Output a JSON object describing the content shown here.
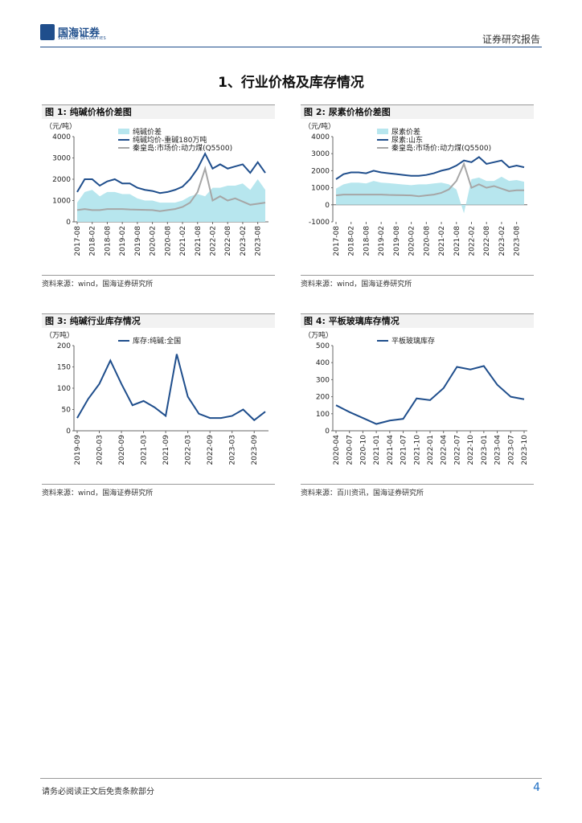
{
  "header": {
    "logo_cn": "国海证券",
    "logo_en": "SEALAND SECURITIES",
    "report_type": "证券研究报告"
  },
  "section_title": "1、行业价格及库存情况",
  "figures": [
    {
      "label": "图 1:",
      "title": "纯碱价格价差图",
      "source": "资料来源：wind，国海证券研究所"
    },
    {
      "label": "图 2:",
      "title": "尿素价格价差图",
      "source": "资料来源：wind，国海证券研究所"
    },
    {
      "label": "图 3:",
      "title": "纯碱行业库存情况",
      "source": "资料来源：wind，国海证券研究所"
    },
    {
      "label": "图 4:",
      "title": "平板玻璃库存情况",
      "source": "资料来源：百川资讯，国海证券研究所"
    }
  ],
  "chart_data": [
    {
      "type": "line",
      "unit": "（元/吨）",
      "categories": [
        "2017-08",
        null,
        "2018-02",
        null,
        "2018-08",
        null,
        "2019-02",
        null,
        "2019-08",
        null,
        "2020-02",
        null,
        "2020-08",
        null,
        "2021-02",
        null,
        "2021-08",
        null,
        "2022-02",
        null,
        "2022-08",
        null,
        "2023-02",
        null,
        "2023-08",
        null
      ],
      "series": [
        {
          "name": "纯碱价差",
          "kind": "area",
          "color": "#b7e6ee",
          "values": [
            900,
            1400,
            1500,
            1200,
            1400,
            1400,
            1300,
            1300,
            1100,
            1000,
            1000,
            900,
            900,
            900,
            1000,
            1200,
            1300,
            1200,
            1600,
            1600,
            1700,
            1700,
            1800,
            1500,
            2000,
            1500
          ]
        },
        {
          "name": "纯碱均价-重碱180万吨",
          "kind": "line",
          "color": "#1f4e8c",
          "values": [
            1400,
            2000,
            2000,
            1700,
            1900,
            2000,
            1800,
            1800,
            1600,
            1500,
            1450,
            1350,
            1400,
            1500,
            1650,
            2000,
            2500,
            3200,
            2500,
            2700,
            2500,
            2600,
            2700,
            2300,
            2800,
            2300
          ]
        },
        {
          "name": "秦皇岛:市场价:动力煤(Q5500)",
          "kind": "line",
          "color": "#a6a6a6",
          "values": [
            550,
            600,
            550,
            550,
            600,
            600,
            600,
            580,
            570,
            560,
            550,
            500,
            550,
            600,
            700,
            900,
            1400,
            2500,
            1000,
            1200,
            1000,
            1100,
            950,
            800,
            850,
            900
          ]
        }
      ],
      "ylim": [
        0,
        4000
      ],
      "yticks": [
        0,
        1000,
        2000,
        3000,
        4000
      ]
    },
    {
      "type": "line",
      "unit": "（元/吨）",
      "categories": [
        "2017-08",
        null,
        "2018-02",
        null,
        "2018-08",
        null,
        "2019-02",
        null,
        "2019-08",
        null,
        "2020-02",
        null,
        "2020-08",
        null,
        "2021-02",
        null,
        "2021-08",
        null,
        "2022-02",
        null,
        "2022-08",
        null,
        "2023-02",
        null,
        "2023-08",
        null
      ],
      "series": [
        {
          "name": "尿素价差",
          "kind": "area",
          "color": "#b7e6ee",
          "values": [
            950,
            1200,
            1300,
            1300,
            1250,
            1400,
            1300,
            1270,
            1230,
            1190,
            1150,
            1200,
            1200,
            1250,
            1300,
            1200,
            900,
            -500,
            1500,
            1600,
            1400,
            1400,
            1650,
            1400,
            1450,
            1350
          ]
        },
        {
          "name": "尿素:山东",
          "kind": "line",
          "color": "#1f4e8c",
          "values": [
            1500,
            1800,
            1900,
            1900,
            1850,
            2000,
            1900,
            1850,
            1800,
            1750,
            1700,
            1700,
            1750,
            1850,
            2000,
            2100,
            2300,
            2600,
            2500,
            2800,
            2400,
            2500,
            2600,
            2200,
            2300,
            2200
          ]
        },
        {
          "name": "秦皇岛:市场价:动力煤(Q5500)",
          "kind": "line",
          "color": "#a6a6a6",
          "values": [
            550,
            600,
            600,
            600,
            600,
            600,
            600,
            580,
            570,
            560,
            550,
            500,
            550,
            600,
            700,
            900,
            1400,
            2400,
            1000,
            1200,
            1000,
            1100,
            950,
            800,
            850,
            850
          ]
        }
      ],
      "ylim": [
        -1000,
        4000
      ],
      "yticks": [
        -1000,
        0,
        1000,
        2000,
        3000,
        4000
      ]
    },
    {
      "type": "line",
      "unit": "（万吨）",
      "categories": [
        "2019-09",
        null,
        "2020-03",
        null,
        "2020-09",
        null,
        "2021-03",
        null,
        "2021-09",
        null,
        "2022-03",
        null,
        "2022-09",
        null,
        "2023-03",
        null,
        "2023-09",
        null
      ],
      "series": [
        {
          "name": "库存:纯碱:全国",
          "kind": "line",
          "color": "#1f4e8c",
          "values": [
            30,
            75,
            110,
            165,
            110,
            60,
            70,
            55,
            35,
            180,
            80,
            40,
            30,
            30,
            35,
            50,
            25,
            45
          ]
        }
      ],
      "ylim": [
        0,
        200
      ],
      "yticks": [
        0,
        50,
        100,
        150,
        200
      ]
    },
    {
      "type": "line",
      "unit": "（万吨）",
      "categories": [
        "2020-04",
        "2020-07",
        "2020-10",
        "2021-01",
        "2021-04",
        "2021-07",
        "2021-10",
        "2022-01",
        "2022-04",
        "2022-07",
        "2022-10",
        "2023-01",
        "2023-04",
        "2023-07",
        "2023-10"
      ],
      "series": [
        {
          "name": "平板玻璃库存",
          "kind": "line",
          "color": "#1f4e8c",
          "values": [
            150,
            110,
            75,
            40,
            60,
            70,
            190,
            180,
            250,
            375,
            360,
            380,
            270,
            200,
            185
          ]
        }
      ],
      "ylim": [
        0,
        500
      ],
      "yticks": [
        0,
        100,
        200,
        300,
        400,
        500
      ]
    }
  ],
  "footer": {
    "disclaimer": "请务必阅读正文后免责条款部分",
    "page": 4
  }
}
